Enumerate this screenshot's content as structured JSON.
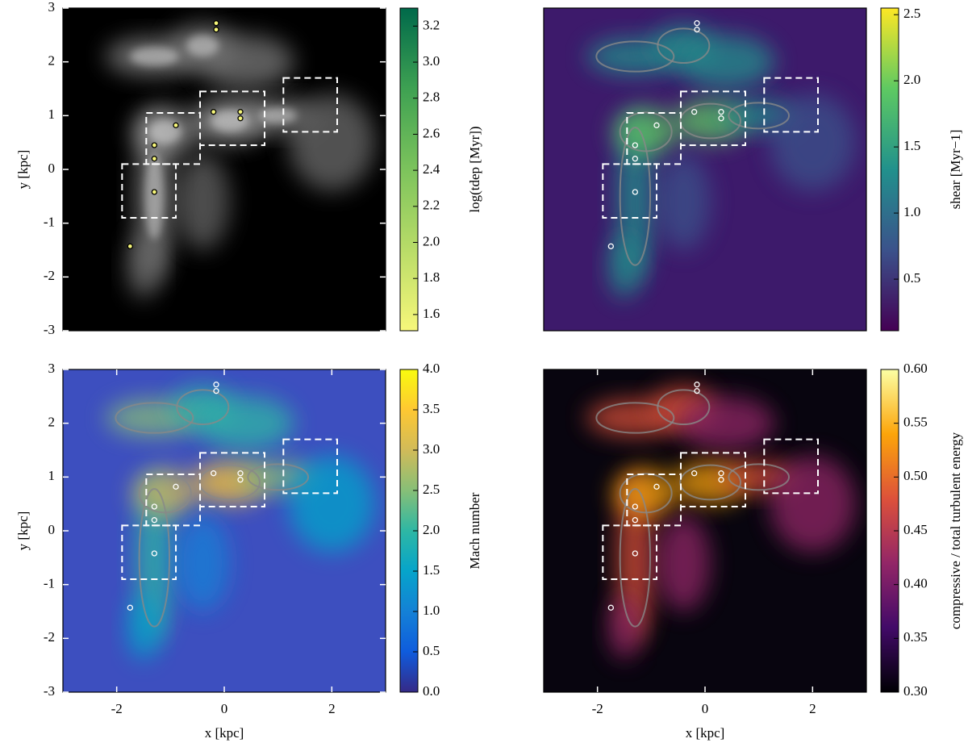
{
  "chart_data": [
    {
      "type": "heatmap",
      "ylabel": "y [kpc]",
      "xlim": [
        -3,
        3
      ],
      "ylim": [
        -3,
        3
      ],
      "yticks": [
        -3,
        -2,
        -1,
        0,
        1,
        2,
        3
      ],
      "background": "#000000",
      "colorbar": {
        "label": "log(tdep [Myr])",
        "lim": [
          1.51,
          3.3
        ],
        "ticks": [
          1.6,
          1.8,
          {
            "value": 2,
            "label": "2.0"
          },
          2.2,
          2.4,
          2.6,
          2.8,
          {
            "value": 3,
            "label": "3.0"
          },
          3.2
        ],
        "colors": [
          "#f7f77a",
          "#b9dc68",
          "#7cc35c",
          "#3ea152",
          "#00694a"
        ]
      }
    },
    {
      "type": "heatmap",
      "xlim": [
        -3,
        3
      ],
      "ylim": [
        -3,
        3
      ],
      "background": "#3d1a6b",
      "colorbar": {
        "label": "shear [Myr−1]",
        "lim": [
          0.11,
          2.55
        ],
        "ticks": [
          0.5,
          {
            "value": 1,
            "label": "1.0"
          },
          1.5,
          {
            "value": 2,
            "label": "2.0"
          },
          2.5
        ],
        "colors": [
          "#440154",
          "#3b528b",
          "#21918c",
          "#5ec962",
          "#fde725"
        ]
      }
    },
    {
      "type": "heatmap",
      "xlabel": "x [kpc]",
      "ylabel": "y [kpc]",
      "xlim": [
        -3,
        3
      ],
      "ylim": [
        -3,
        3
      ],
      "xticks": [
        -2,
        0,
        2
      ],
      "yticks": [
        -3,
        -2,
        -1,
        0,
        1,
        2,
        3
      ],
      "background": "#3d4fbf",
      "colorbar": {
        "label": "Mach number",
        "lim": [
          0,
          4
        ],
        "ticks": [
          {
            "value": 0,
            "label": "0.0"
          },
          0.5,
          {
            "value": 1,
            "label": "1.0"
          },
          1.5,
          {
            "value": 2,
            "label": "2.0"
          },
          2.5,
          {
            "value": 3,
            "label": "3.0"
          },
          3.5,
          {
            "value": 4,
            "label": "4.0"
          }
        ],
        "colors": [
          "#352a87",
          "#0f5cdd",
          "#1481d6",
          "#06a4ca",
          "#2eb7a4",
          "#87bf77",
          "#d1bb59",
          "#fec832",
          "#f9fb0e"
        ]
      }
    },
    {
      "type": "heatmap",
      "xlabel": "x [kpc]",
      "xlim": [
        -3,
        3
      ],
      "ylim": [
        -3,
        3
      ],
      "xticks": [
        -2,
        0,
        2
      ],
      "background": "#08050f",
      "colorbar": {
        "label": "compressive / total turbulent energy",
        "lim": [
          0.3,
          0.6
        ],
        "ticks": [
          {
            "value": 0.3,
            "label": "0.30"
          },
          0.35,
          {
            "value": 0.4,
            "label": "0.40"
          },
          0.45,
          {
            "value": 0.5,
            "label": "0.50"
          },
          0.55,
          {
            "value": 0.6,
            "label": "0.60"
          }
        ],
        "colors": [
          "#000004",
          "#420a68",
          "#932667",
          "#dd513a",
          "#fca50a",
          "#fcffa4"
        ]
      }
    }
  ]
}
